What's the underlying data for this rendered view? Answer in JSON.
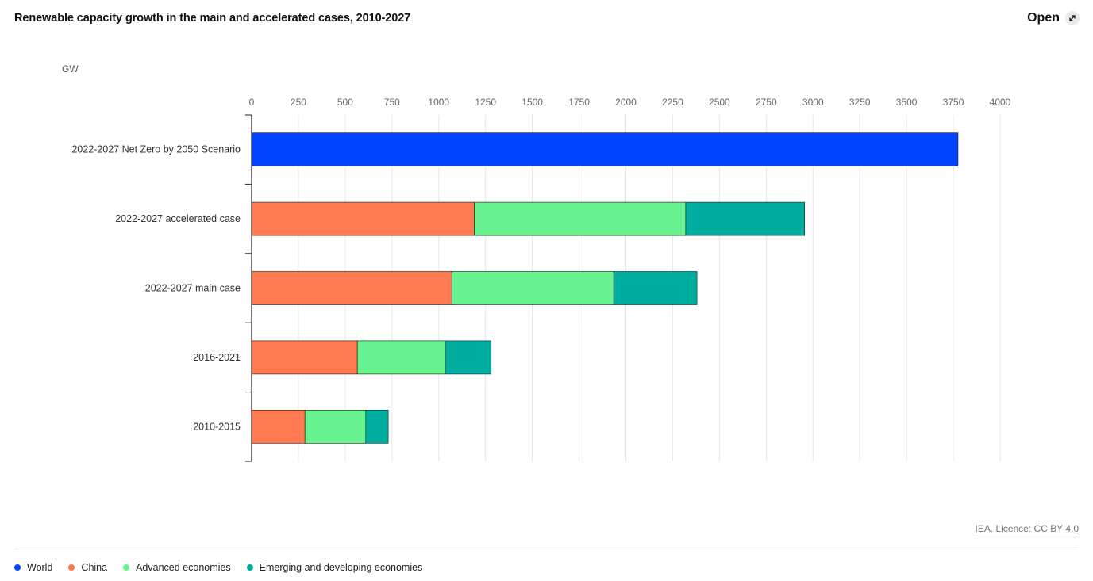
{
  "header": {
    "title": "Renewable capacity growth in the main and accelerated cases, 2010-2027",
    "open_label": "Open",
    "open_icon": "external-expand-icon"
  },
  "footer": {
    "licence": "IEA. Licence: CC BY 4.0"
  },
  "chart_data": {
    "type": "bar",
    "orientation": "horizontal",
    "stacked": true,
    "title": "Renewable capacity growth in the main and accelerated cases, 2010-2027",
    "unit_label": "GW",
    "xlabel": "GW",
    "ylabel": "",
    "xlim": [
      0,
      4000
    ],
    "x_ticks": [
      "0",
      "250",
      "500",
      "750",
      "1000",
      "1250",
      "1500",
      "1750",
      "2000",
      "2250",
      "2500",
      "2750",
      "3000",
      "3250",
      "3500",
      "3750",
      "4000"
    ],
    "x_tick_values": [
      0,
      250,
      500,
      750,
      1000,
      1250,
      1500,
      1750,
      2000,
      2250,
      2500,
      2750,
      3000,
      3250,
      3500,
      3750,
      4000
    ],
    "grid": true,
    "legend_position": "bottom-left",
    "categories": [
      "2022-2027 Net Zero by 2050 Scenario",
      "2022-2027 accelerated case",
      "2022-2027 main case",
      "2016-2021",
      "2010-2015"
    ],
    "series": [
      {
        "name": "World",
        "color": "#0044ff",
        "values": [
          3775,
          0,
          0,
          0,
          0
        ]
      },
      {
        "name": "China",
        "color": "#ff7a50",
        "values": [
          0,
          1190,
          1070,
          565,
          285
        ]
      },
      {
        "name": "Advanced economies",
        "color": "#69f290",
        "values": [
          0,
          1130,
          865,
          470,
          325
        ]
      },
      {
        "name": "Emerging and developing economies",
        "color": "#00aea0",
        "values": [
          0,
          635,
          445,
          245,
          120
        ]
      }
    ]
  }
}
